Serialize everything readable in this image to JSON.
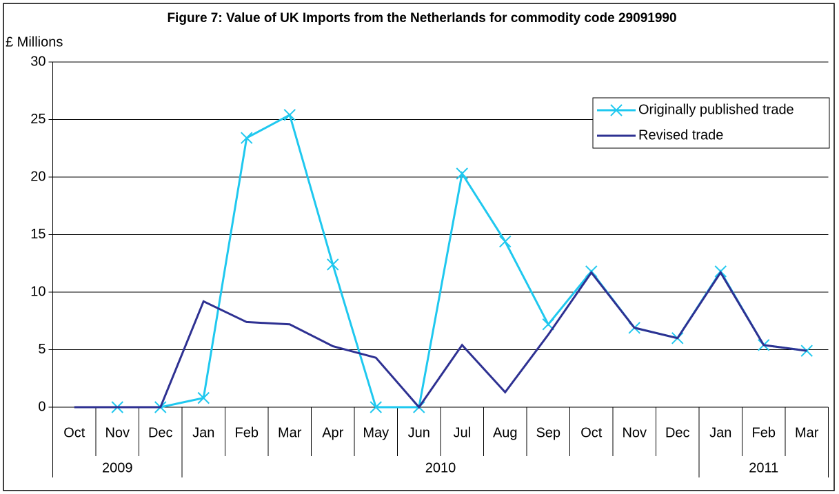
{
  "chart_data": {
    "type": "line",
    "title": "Figure 7: Value of UK Imports from the Netherlands for commodity code 29091990",
    "y_label": "£ Millions",
    "categories": [
      "Oct",
      "Nov",
      "Dec",
      "Jan",
      "Feb",
      "Mar",
      "Apr",
      "May",
      "Jun",
      "Jul",
      "Aug",
      "Sep",
      "Oct",
      "Nov",
      "Dec",
      "Jan",
      "Feb",
      "Mar"
    ],
    "groups": [
      {
        "label": "2009",
        "count": 3
      },
      {
        "label": "2010",
        "count": 12
      },
      {
        "label": "2011",
        "count": 3
      }
    ],
    "series": [
      {
        "name": "Originally published trade",
        "color": "#1fc8ef",
        "marker": "x",
        "values": [
          null,
          0,
          0,
          0.8,
          23.4,
          25.4,
          12.4,
          0,
          0,
          20.3,
          14.4,
          7.2,
          11.8,
          6.9,
          6.0,
          11.8,
          5.4,
          4.9
        ]
      },
      {
        "name": "Revised trade",
        "color": "#2e3192",
        "marker": null,
        "values": [
          0,
          0,
          0,
          9.2,
          7.4,
          7.2,
          5.3,
          4.3,
          0,
          5.4,
          1.3,
          6.3,
          11.7,
          6.9,
          6.0,
          11.7,
          5.4,
          4.9
        ]
      }
    ],
    "ylim": [
      0,
      30
    ],
    "yticks": [
      0,
      5,
      10,
      15,
      20,
      25,
      30
    ],
    "grid": true,
    "legend": "top-right"
  }
}
